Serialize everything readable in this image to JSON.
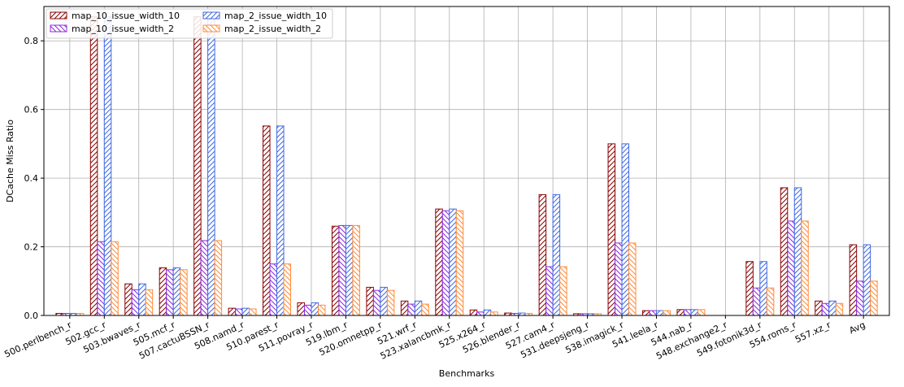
{
  "chart_data": {
    "type": "bar",
    "title": "",
    "xlabel": "Benchmarks",
    "ylabel": "DCache Miss Ratio",
    "ylim": [
      0,
      0.9
    ],
    "yticks": [
      "0.0",
      "0.2",
      "0.4",
      "0.6",
      "0.8"
    ],
    "ytick_values": [
      0.0,
      0.2,
      0.4,
      0.6,
      0.8
    ],
    "grid": true,
    "legend_position": "top-left",
    "categories": [
      "500.perlbench_r",
      "502.gcc_r",
      "503.bwaves_r",
      "505.mcf_r",
      "507.cactuBSSN_r",
      "508.namd_r",
      "510.parest_r",
      "511.povray_r",
      "519.lbm_r",
      "520.omnetpp_r",
      "521.wrf_r",
      "523.xalancbmk_r",
      "525.x264_r",
      "526.blender_r",
      "527.cam4_r",
      "531.deepsjeng_r",
      "538.imagick_r",
      "541.leela_r",
      "544.nab_r",
      "548.exchange2_r",
      "549.fotonik3d_r",
      "554.roms_r",
      "557.xz_r",
      "Avg"
    ],
    "series": [
      {
        "name": "map_10_issue_width_10",
        "color": "#8b0000",
        "hatch": "forward",
        "values": [
          0.006,
          0.87,
          0.092,
          0.139,
          0.87,
          0.021,
          0.552,
          0.037,
          0.26,
          0.082,
          0.042,
          0.31,
          0.016,
          0.007,
          0.352,
          0.005,
          0.5,
          0.014,
          0.017,
          0.0,
          0.157,
          0.372,
          0.042,
          0.206
        ]
      },
      {
        "name": "map_10_issue_width_2",
        "color": "#8a2be2",
        "hatch": "back",
        "values": [
          0.006,
          0.215,
          0.075,
          0.133,
          0.218,
          0.019,
          0.15,
          0.03,
          0.262,
          0.073,
          0.033,
          0.305,
          0.01,
          0.006,
          0.142,
          0.005,
          0.211,
          0.014,
          0.017,
          0.0,
          0.08,
          0.275,
          0.035,
          0.1
        ]
      },
      {
        "name": "map_2_issue_width_10",
        "color": "#4169e1",
        "hatch": "forward",
        "values": [
          0.006,
          0.87,
          0.092,
          0.139,
          0.87,
          0.021,
          0.552,
          0.037,
          0.262,
          0.082,
          0.042,
          0.31,
          0.016,
          0.007,
          0.352,
          0.005,
          0.5,
          0.014,
          0.017,
          0.0,
          0.157,
          0.372,
          0.042,
          0.206
        ]
      },
      {
        "name": "map_2_issue_width_2",
        "color": "#ff8c3a",
        "hatch": "back",
        "values": [
          0.006,
          0.215,
          0.075,
          0.133,
          0.218,
          0.019,
          0.15,
          0.03,
          0.262,
          0.073,
          0.033,
          0.305,
          0.01,
          0.006,
          0.142,
          0.005,
          0.211,
          0.014,
          0.017,
          0.0,
          0.08,
          0.275,
          0.035,
          0.1
        ]
      }
    ]
  }
}
